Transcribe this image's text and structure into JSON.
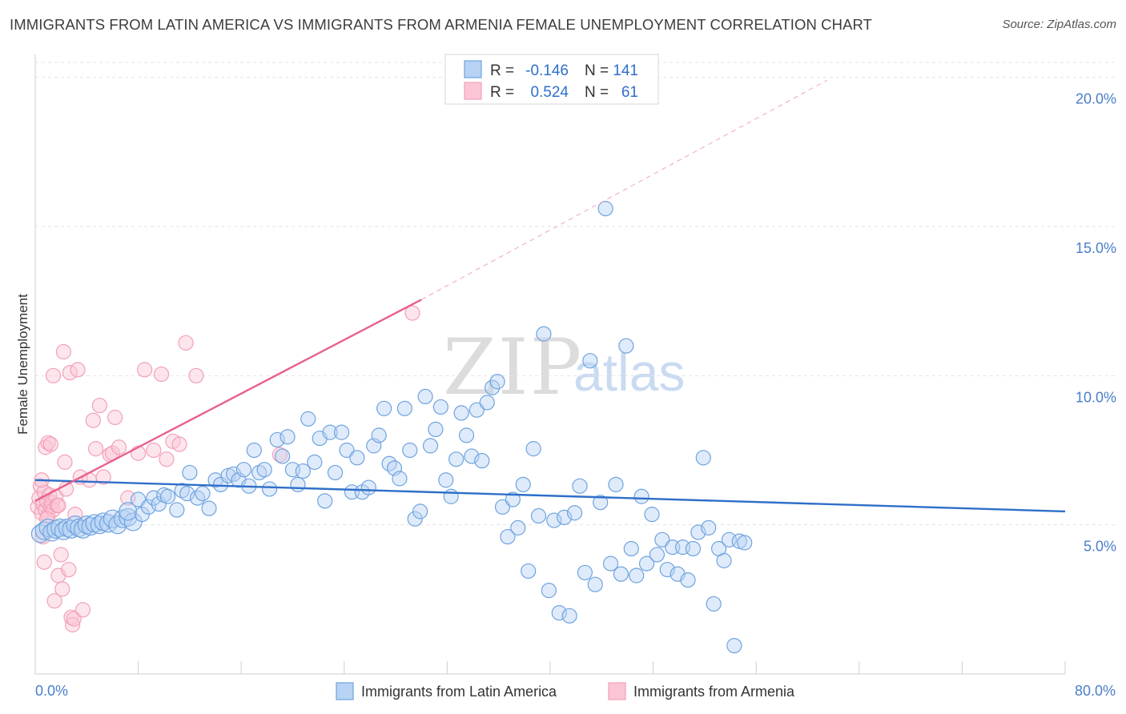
{
  "title": "IMMIGRANTS FROM LATIN AMERICA VS IMMIGRANTS FROM ARMENIA FEMALE UNEMPLOYMENT CORRELATION CHART",
  "source": "Source: ZipAtlas.com",
  "watermark": {
    "zip": "ZIP",
    "atlas": "atlas"
  },
  "colors": {
    "blue": "#6fa3df",
    "blue_line": "#2e6fc9",
    "pink": "#f2a0b8",
    "pink_line": "#e8608e",
    "tick": "#4a7ec9"
  },
  "legend": {
    "rows": [
      {
        "r_label": "R =",
        "r_value": "-0.146",
        "n_label": "N =",
        "n_value": "141"
      },
      {
        "r_label": "R =",
        "r_value": "0.524",
        "n_label": "N =",
        "n_value": "61"
      }
    ]
  },
  "chart_data": {
    "type": "scatter",
    "xlabel": "",
    "ylabel": "Female Unemployment",
    "xlim": [
      0,
      80
    ],
    "ylim": [
      0,
      20.5
    ],
    "x_tick_labels": [
      "0.0%",
      "80.0%"
    ],
    "y_ticks": [
      5,
      10,
      15,
      20
    ],
    "y_tick_labels": [
      "5.0%",
      "10.0%",
      "15.0%",
      "20.0%"
    ],
    "grid": true,
    "legend_position": "top-center",
    "series": [
      {
        "name": "Immigrants from Latin America",
        "color": "#6fa3df",
        "trend": {
          "x": [
            0,
            80
          ],
          "y": [
            6.5,
            5.45
          ]
        },
        "points": [
          [
            0.4,
            4.7
          ],
          [
            0.7,
            4.8
          ],
          [
            1.0,
            4.9
          ],
          [
            1.3,
            4.75
          ],
          [
            1.6,
            4.85
          ],
          [
            1.9,
            4.9
          ],
          [
            2.2,
            4.8
          ],
          [
            2.5,
            4.9
          ],
          [
            2.8,
            4.85
          ],
          [
            3.1,
            5.0
          ],
          [
            3.4,
            4.9
          ],
          [
            3.7,
            4.85
          ],
          [
            4.0,
            5.0
          ],
          [
            4.3,
            4.95
          ],
          [
            4.6,
            5.05
          ],
          [
            5.0,
            5.0
          ],
          [
            5.3,
            5.1
          ],
          [
            5.7,
            5.05
          ],
          [
            6.0,
            5.2
          ],
          [
            6.4,
            5.0
          ],
          [
            6.8,
            5.2
          ],
          [
            7.2,
            5.25
          ],
          [
            7.6,
            5.1
          ],
          [
            7.2,
            5.45
          ],
          [
            8.0,
            5.85
          ],
          [
            8.3,
            5.35
          ],
          [
            8.8,
            5.6
          ],
          [
            9.2,
            5.9
          ],
          [
            9.6,
            5.7
          ],
          [
            10.0,
            6.0
          ],
          [
            10.3,
            5.95
          ],
          [
            11.0,
            5.5
          ],
          [
            11.4,
            6.15
          ],
          [
            11.8,
            6.05
          ],
          [
            12.0,
            6.75
          ],
          [
            12.6,
            5.9
          ],
          [
            13.0,
            6.05
          ],
          [
            13.5,
            5.55
          ],
          [
            14.0,
            6.5
          ],
          [
            14.4,
            6.35
          ],
          [
            15.0,
            6.65
          ],
          [
            15.4,
            6.7
          ],
          [
            15.8,
            6.5
          ],
          [
            16.2,
            6.85
          ],
          [
            16.6,
            6.3
          ],
          [
            17.0,
            7.5
          ],
          [
            17.4,
            6.75
          ],
          [
            17.8,
            6.85
          ],
          [
            18.2,
            6.2
          ],
          [
            18.8,
            7.85
          ],
          [
            19.2,
            7.3
          ],
          [
            19.6,
            7.95
          ],
          [
            20.0,
            6.85
          ],
          [
            20.4,
            6.35
          ],
          [
            20.8,
            6.8
          ],
          [
            21.2,
            8.55
          ],
          [
            21.7,
            7.1
          ],
          [
            22.1,
            7.9
          ],
          [
            22.5,
            5.8
          ],
          [
            22.9,
            8.1
          ],
          [
            23.3,
            6.75
          ],
          [
            23.8,
            8.1
          ],
          [
            24.2,
            7.5
          ],
          [
            24.6,
            6.1
          ],
          [
            25.0,
            7.25
          ],
          [
            25.4,
            6.1
          ],
          [
            25.9,
            6.25
          ],
          [
            26.3,
            7.65
          ],
          [
            26.7,
            8.0
          ],
          [
            27.1,
            8.9
          ],
          [
            27.5,
            7.05
          ],
          [
            27.9,
            6.9
          ],
          [
            28.3,
            6.55
          ],
          [
            28.7,
            8.9
          ],
          [
            29.1,
            7.5
          ],
          [
            29.5,
            5.2
          ],
          [
            29.9,
            5.45
          ],
          [
            30.3,
            9.3
          ],
          [
            30.7,
            7.65
          ],
          [
            31.1,
            8.2
          ],
          [
            31.5,
            8.95
          ],
          [
            31.9,
            6.5
          ],
          [
            32.3,
            5.95
          ],
          [
            32.7,
            7.2
          ],
          [
            33.1,
            8.75
          ],
          [
            33.5,
            8.0
          ],
          [
            33.9,
            7.3
          ],
          [
            34.3,
            8.85
          ],
          [
            34.7,
            7.15
          ],
          [
            35.1,
            9.1
          ],
          [
            35.5,
            9.6
          ],
          [
            35.9,
            9.8
          ],
          [
            36.3,
            5.6
          ],
          [
            36.7,
            4.6
          ],
          [
            37.1,
            5.85
          ],
          [
            37.5,
            4.9
          ],
          [
            37.9,
            6.35
          ],
          [
            38.3,
            3.45
          ],
          [
            38.7,
            7.55
          ],
          [
            39.1,
            5.3
          ],
          [
            39.5,
            11.4
          ],
          [
            39.9,
            2.8
          ],
          [
            40.3,
            5.15
          ],
          [
            40.7,
            2.05
          ],
          [
            41.1,
            5.25
          ],
          [
            41.5,
            1.95
          ],
          [
            41.9,
            5.4
          ],
          [
            42.3,
            6.3
          ],
          [
            42.7,
            3.4
          ],
          [
            43.1,
            10.5
          ],
          [
            43.5,
            3.0
          ],
          [
            43.9,
            5.75
          ],
          [
            44.3,
            15.6
          ],
          [
            44.7,
            3.7
          ],
          [
            45.1,
            6.35
          ],
          [
            45.5,
            3.35
          ],
          [
            45.9,
            11.0
          ],
          [
            46.3,
            4.2
          ],
          [
            46.7,
            3.3
          ],
          [
            47.1,
            5.95
          ],
          [
            47.5,
            3.7
          ],
          [
            47.9,
            5.35
          ],
          [
            48.3,
            4.0
          ],
          [
            48.7,
            4.5
          ],
          [
            49.1,
            3.5
          ],
          [
            49.5,
            4.25
          ],
          [
            49.9,
            3.35
          ],
          [
            50.3,
            4.25
          ],
          [
            50.7,
            3.15
          ],
          [
            51.1,
            4.2
          ],
          [
            51.5,
            4.75
          ],
          [
            51.9,
            7.25
          ],
          [
            52.3,
            4.9
          ],
          [
            52.7,
            2.35
          ],
          [
            53.1,
            4.2
          ],
          [
            53.5,
            3.8
          ],
          [
            53.9,
            4.5
          ],
          [
            54.3,
            0.95
          ],
          [
            54.7,
            4.45
          ],
          [
            55.1,
            4.4
          ]
        ]
      },
      {
        "name": "Immigrants from Armenia",
        "color": "#f2a0b8",
        "trend": {
          "x": [
            0,
            30
          ],
          "y": [
            5.8,
            12.55
          ]
        },
        "trend_dashed": {
          "x": [
            30,
            61.5
          ],
          "y": [
            12.55,
            19.9
          ]
        },
        "points": [
          [
            0.2,
            5.6
          ],
          [
            0.3,
            5.9
          ],
          [
            0.4,
            6.3
          ],
          [
            0.5,
            5.4
          ],
          [
            0.6,
            5.7
          ],
          [
            0.7,
            6.1
          ],
          [
            0.8,
            5.5
          ],
          [
            0.9,
            5.8
          ],
          [
            1.0,
            5.3
          ],
          [
            1.1,
            6.0
          ],
          [
            1.2,
            5.6
          ],
          [
            1.3,
            5.75
          ],
          [
            1.4,
            5.5
          ],
          [
            0.5,
            6.5
          ],
          [
            0.6,
            4.6
          ],
          [
            0.7,
            3.75
          ],
          [
            0.8,
            7.6
          ],
          [
            0.9,
            5.2
          ],
          [
            1.0,
            7.75
          ],
          [
            1.2,
            7.7
          ],
          [
            1.4,
            10.0
          ],
          [
            1.5,
            2.45
          ],
          [
            1.6,
            5.95
          ],
          [
            1.7,
            5.65
          ],
          [
            1.8,
            3.3
          ],
          [
            2.0,
            4.0
          ],
          [
            2.1,
            2.85
          ],
          [
            2.2,
            10.8
          ],
          [
            2.3,
            7.1
          ],
          [
            2.4,
            6.2
          ],
          [
            2.6,
            3.5
          ],
          [
            2.7,
            10.1
          ],
          [
            2.8,
            1.9
          ],
          [
            2.9,
            1.65
          ],
          [
            3.0,
            1.85
          ],
          [
            3.1,
            5.35
          ],
          [
            3.3,
            10.2
          ],
          [
            3.5,
            6.6
          ],
          [
            3.7,
            2.15
          ],
          [
            4.2,
            6.5
          ],
          [
            4.5,
            8.5
          ],
          [
            4.7,
            7.55
          ],
          [
            5.0,
            9.0
          ],
          [
            5.3,
            6.6
          ],
          [
            5.8,
            7.35
          ],
          [
            6.0,
            7.4
          ],
          [
            6.2,
            8.6
          ],
          [
            6.5,
            7.6
          ],
          [
            7.2,
            5.9
          ],
          [
            8.0,
            7.4
          ],
          [
            8.5,
            10.2
          ],
          [
            9.2,
            7.5
          ],
          [
            9.8,
            10.05
          ],
          [
            10.2,
            7.2
          ],
          [
            10.7,
            7.8
          ],
          [
            11.2,
            7.7
          ],
          [
            11.7,
            11.1
          ],
          [
            12.5,
            10.0
          ],
          [
            19.0,
            7.35
          ],
          [
            29.3,
            12.1
          ],
          [
            1.8,
            5.65
          ]
        ]
      }
    ]
  },
  "bottom_legend": [
    {
      "label": "Immigrants from Latin America"
    },
    {
      "label": "Immigrants from Armenia"
    }
  ]
}
